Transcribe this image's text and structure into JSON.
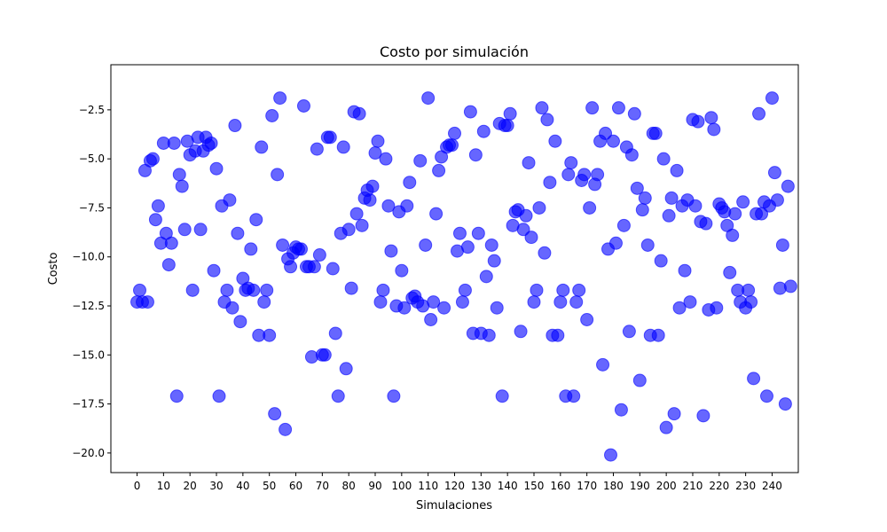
{
  "chart_data": {
    "type": "scatter",
    "title": "Costo por simulación",
    "xlabel": "Simulaciones",
    "ylabel": "Costo",
    "xlim": [
      -9.9,
      249.9
    ],
    "ylim": [
      -21.0,
      -0.2
    ],
    "xticks": [
      0,
      10,
      20,
      30,
      40,
      50,
      60,
      70,
      80,
      90,
      100,
      110,
      120,
      130,
      140,
      150,
      160,
      170,
      180,
      190,
      200,
      210,
      220,
      230,
      240
    ],
    "xtick_labels": [
      "0",
      "10",
      "20",
      "30",
      "40",
      "50",
      "60",
      "70",
      "80",
      "90",
      "100",
      "110",
      "120",
      "130",
      "140",
      "150",
      "160",
      "170",
      "180",
      "190",
      "200",
      "210",
      "220",
      "230",
      "240"
    ],
    "yticks": [
      -20.0,
      -17.5,
      -15.0,
      -12.5,
      -10.0,
      -7.5,
      -5.0,
      -2.5
    ],
    "ytick_labels": [
      "−20.0",
      "−17.5",
      "−15.0",
      "−12.5",
      "−10.0",
      "−7.5",
      "−5.0",
      "−2.5"
    ],
    "grid": false,
    "marker_color": "#0000ff",
    "marker_alpha": 0.6,
    "series": [
      {
        "x": [
          0,
          1,
          2,
          3,
          4,
          5,
          6,
          7,
          8,
          9,
          10,
          11,
          12,
          13,
          14,
          15,
          16,
          17,
          18,
          19,
          20,
          21,
          22,
          23,
          24,
          25,
          26,
          27,
          28,
          29,
          30,
          31,
          32,
          33,
          34,
          35,
          36,
          37,
          38,
          39,
          40,
          41,
          42,
          43,
          44,
          45,
          46,
          47,
          48,
          49,
          50,
          51,
          52,
          53,
          54,
          55,
          56,
          57,
          58,
          59,
          60,
          61,
          62,
          63,
          64,
          65,
          66,
          67,
          68,
          69,
          70,
          71,
          72,
          73,
          74,
          75,
          76,
          77,
          78,
          79,
          80,
          81,
          82,
          83,
          84,
          85,
          86,
          87,
          88,
          89,
          90,
          91,
          92,
          93,
          94,
          95,
          96,
          97,
          98,
          99,
          100,
          101,
          102,
          103,
          104,
          105,
          106,
          107,
          108,
          109,
          110,
          111,
          112,
          113,
          114,
          115,
          116,
          117,
          118,
          119,
          120,
          121,
          122,
          123,
          124,
          125,
          126,
          127,
          128,
          129,
          130,
          131,
          132,
          133,
          134,
          135,
          136,
          137,
          138,
          139,
          140,
          141,
          142,
          143,
          144,
          145,
          146,
          147,
          148,
          149,
          150,
          151,
          152,
          153,
          154,
          155,
          156,
          157,
          158,
          159,
          160,
          161,
          162,
          163,
          164,
          165,
          166,
          167,
          168,
          169,
          170,
          171,
          172,
          173,
          174,
          175,
          176,
          177,
          178,
          179,
          180,
          181,
          182,
          183,
          184,
          185,
          186,
          187,
          188,
          189,
          190,
          191,
          192,
          193,
          194,
          195,
          196,
          197,
          198,
          199,
          200,
          201,
          202,
          203,
          204,
          205,
          206,
          207,
          208,
          209,
          210,
          211,
          212,
          213,
          214,
          215,
          216,
          217,
          218,
          219,
          220,
          221,
          222,
          223,
          224,
          225,
          226,
          227,
          228,
          229,
          230,
          231,
          232,
          233,
          234,
          235,
          236,
          237,
          238,
          239,
          240,
          241,
          242,
          243,
          244,
          245,
          246,
          247
        ],
        "y": [
          -12.3,
          -11.7,
          -12.3,
          -5.6,
          -12.3,
          -5.1,
          -5.0,
          -8.1,
          -7.4,
          -9.3,
          -4.2,
          -8.8,
          -10.4,
          -9.3,
          -4.2,
          -17.1,
          -5.8,
          -6.4,
          -8.6,
          -4.1,
          -4.8,
          -11.7,
          -4.6,
          -3.9,
          -8.6,
          -4.6,
          -3.9,
          -4.3,
          -4.2,
          -10.7,
          -5.5,
          -17.1,
          -7.4,
          -12.3,
          -11.7,
          -7.1,
          -12.6,
          -3.3,
          -8.8,
          -13.3,
          -11.1,
          -11.7,
          -11.6,
          -9.6,
          -11.7,
          -8.1,
          -14.0,
          -4.4,
          -12.3,
          -11.7,
          -14.0,
          -2.8,
          -18.0,
          -5.8,
          -1.9,
          -9.4,
          -18.8,
          -10.1,
          -10.5,
          -9.8,
          -9.5,
          -9.6,
          -9.6,
          -2.3,
          -10.5,
          -10.5,
          -15.1,
          -10.5,
          -4.5,
          -9.9,
          -15.0,
          -15.0,
          -3.9,
          -3.9,
          -10.6,
          -13.9,
          -17.1,
          -8.8,
          -4.4,
          -15.7,
          -8.6,
          -11.6,
          -2.6,
          -7.8,
          -2.7,
          -8.4,
          -7.0,
          -6.6,
          -7.1,
          -6.4,
          -4.7,
          -4.1,
          -12.3,
          -11.7,
          -5.0,
          -7.4,
          -9.7,
          -17.1,
          -12.5,
          -7.7,
          -10.7,
          -12.6,
          -7.4,
          -6.2,
          -12.1,
          -12.0,
          -12.3,
          -5.1,
          -12.5,
          -9.4,
          -1.9,
          -13.2,
          -12.3,
          -7.8,
          -5.6,
          -4.9,
          -12.6,
          -4.4,
          -4.3,
          -4.3,
          -3.7,
          -9.7,
          -8.8,
          -12.3,
          -11.7,
          -9.5,
          -2.6,
          -13.9,
          -4.8,
          -8.8,
          -13.9,
          -3.6,
          -11.0,
          -14.0,
          -9.4,
          -10.2,
          -12.6,
          -3.2,
          -17.1,
          -3.3,
          -3.3,
          -2.7,
          -8.4,
          -7.7,
          -7.6,
          -13.8,
          -8.6,
          -7.9,
          -5.2,
          -9.0,
          -12.3,
          -11.7,
          -7.5,
          -2.4,
          -9.8,
          -3.0,
          -6.2,
          -14.0,
          -4.1,
          -14.0,
          -12.3,
          -11.7,
          -17.1,
          -5.8,
          -5.2,
          -17.1,
          -12.3,
          -11.7,
          -6.1,
          -5.8,
          -13.2,
          -7.5,
          -2.4,
          -6.3,
          -5.8,
          -4.1,
          -15.5,
          -3.7,
          -9.6,
          -20.1,
          -4.1,
          -9.3,
          -2.4,
          -17.8,
          -8.4,
          -4.4,
          -13.8,
          -4.8,
          -2.7,
          -6.5,
          -16.3,
          -7.6,
          -7.0,
          -9.4,
          -14.0,
          -3.7,
          -3.7,
          -14.0,
          -10.2,
          -5.0,
          -18.7,
          -7.9,
          -7.0,
          -18.0,
          -5.6,
          -12.6,
          -7.4,
          -10.7,
          -7.1,
          -12.3,
          -3.0,
          -7.4,
          -3.1,
          -8.2,
          -18.1,
          -8.3,
          -12.7,
          -2.9,
          -3.5,
          -12.6,
          -7.3,
          -7.5,
          -7.7,
          -8.4,
          -10.8,
          -8.9,
          -7.8,
          -11.7,
          -12.3,
          -7.2,
          -12.6,
          -11.7,
          -12.3,
          -16.2,
          -7.8,
          -2.7,
          -7.8,
          -7.2,
          -17.1,
          -7.4,
          -1.9,
          -5.7,
          -7.1,
          -11.6,
          -9.4,
          -17.5,
          -6.4,
          -11.5
        ]
      }
    ]
  }
}
